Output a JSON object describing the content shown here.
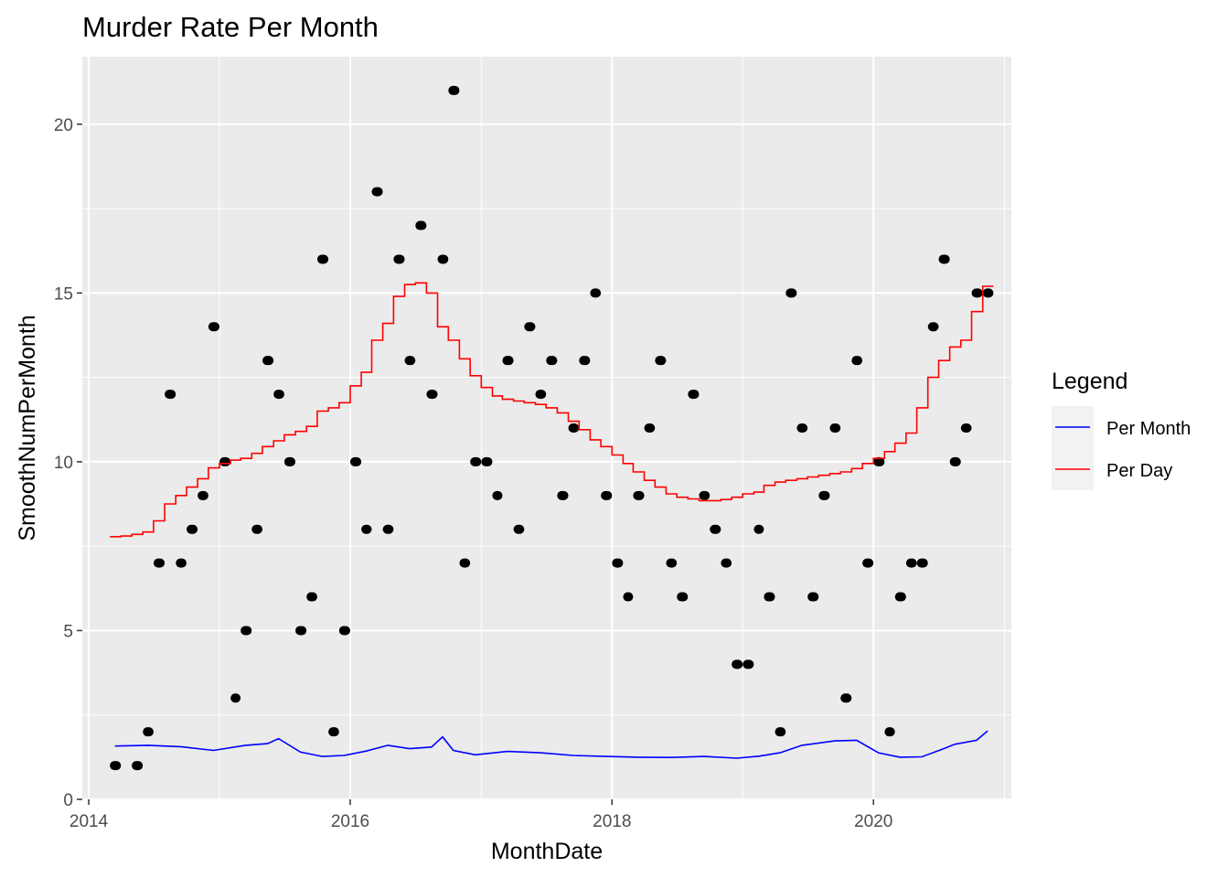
{
  "chart_data": {
    "type": "line",
    "title": "Murder Rate Per Month",
    "xlabel": "MonthDate",
    "ylabel": "SmoothNumPerMonth",
    "xlim": [
      "2013-12-14",
      "2021-01-20"
    ],
    "ylim": [
      0,
      22
    ],
    "x_ticks": [
      "2014",
      "2016",
      "2018",
      "2020"
    ],
    "y_ticks": [
      "0",
      "5",
      "10",
      "15",
      "20"
    ],
    "grid": true,
    "legend": {
      "title": "Legend",
      "position": "right",
      "entries": [
        {
          "label": "Per Month",
          "color": "#0000ff"
        },
        {
          "label": "Per Day",
          "color": "#ff0000"
        }
      ]
    },
    "points": {
      "name": "Monthly count",
      "color": "#000000",
      "x": [
        "2014-03",
        "2014-05",
        "2014-06",
        "2014-07",
        "2014-08",
        "2014-09",
        "2014-10",
        "2014-11",
        "2014-12",
        "2015-01",
        "2015-02",
        "2015-03",
        "2015-04",
        "2015-05",
        "2015-06",
        "2015-07",
        "2015-08",
        "2015-09",
        "2015-10",
        "2015-11",
        "2015-12",
        "2016-01",
        "2016-02",
        "2016-03",
        "2016-04",
        "2016-05",
        "2016-06",
        "2016-07",
        "2016-08",
        "2016-09",
        "2016-10",
        "2016-11",
        "2016-12",
        "2017-01",
        "2017-02",
        "2017-03",
        "2017-04",
        "2017-05",
        "2017-06",
        "2017-07",
        "2017-08",
        "2017-09",
        "2017-10",
        "2017-11",
        "2017-12",
        "2018-01",
        "2018-02",
        "2018-03",
        "2018-04",
        "2018-05",
        "2018-06",
        "2018-07",
        "2018-08",
        "2018-09",
        "2018-10",
        "2018-11",
        "2018-12",
        "2019-01",
        "2019-02",
        "2019-03",
        "2019-04",
        "2019-05",
        "2019-06",
        "2019-07",
        "2019-08",
        "2019-09",
        "2019-10",
        "2019-11",
        "2019-12",
        "2020-01",
        "2020-02",
        "2020-03",
        "2020-04",
        "2020-05",
        "2020-06",
        "2020-07",
        "2020-08",
        "2020-09",
        "2020-10",
        "2020-11"
      ],
      "y": [
        1,
        1,
        2,
        7,
        12,
        7,
        8,
        9,
        14,
        10,
        3,
        5,
        8,
        13,
        12,
        10,
        5,
        6,
        16,
        2,
        5,
        10,
        8,
        18,
        8,
        16,
        13,
        17,
        12,
        16,
        21,
        7,
        10,
        10,
        9,
        13,
        8,
        14,
        12,
        13,
        9,
        11,
        13,
        15,
        9,
        7,
        6,
        9,
        11,
        13,
        7,
        6,
        12,
        9,
        8,
        7,
        4,
        4,
        8,
        6,
        2,
        15,
        11,
        6,
        9,
        11,
        3,
        13,
        7,
        10,
        2,
        6,
        7,
        7,
        14,
        16,
        10,
        11,
        15,
        15
      ]
    },
    "series": [
      {
        "name": "Per Month",
        "color": "#0000ff",
        "x": [
          "2014-03",
          "2014-06",
          "2014-09",
          "2014-12",
          "2015-03",
          "2015-05",
          "2015-06",
          "2015-08",
          "2015-10",
          "2015-12",
          "2016-02",
          "2016-04",
          "2016-06",
          "2016-08",
          "2016-09",
          "2016-10",
          "2016-12",
          "2017-03",
          "2017-06",
          "2017-09",
          "2017-12",
          "2018-03",
          "2018-06",
          "2018-09",
          "2018-12",
          "2019-02",
          "2019-04",
          "2019-06",
          "2019-09",
          "2019-11",
          "2020-01",
          "2020-03",
          "2020-05",
          "2020-07",
          "2020-08",
          "2020-10",
          "2020-11"
        ],
        "y": [
          1.58,
          1.6,
          1.56,
          1.45,
          1.6,
          1.65,
          1.8,
          1.4,
          1.27,
          1.3,
          1.43,
          1.6,
          1.5,
          1.55,
          1.85,
          1.45,
          1.32,
          1.42,
          1.38,
          1.3,
          1.27,
          1.25,
          1.24,
          1.27,
          1.22,
          1.28,
          1.38,
          1.6,
          1.73,
          1.75,
          1.38,
          1.25,
          1.26,
          1.5,
          1.63,
          1.75,
          2.03
        ]
      },
      {
        "name": "Per Day",
        "color": "#ff0000",
        "x": [
          "2014-03",
          "2014-04",
          "2014-05",
          "2014-06",
          "2014-07",
          "2014-08",
          "2014-09",
          "2014-10",
          "2014-11",
          "2014-12",
          "2015-01",
          "2015-02",
          "2015-03",
          "2015-04",
          "2015-05",
          "2015-06",
          "2015-07",
          "2015-08",
          "2015-09",
          "2015-10",
          "2015-11",
          "2015-12",
          "2016-01",
          "2016-02",
          "2016-03",
          "2016-04",
          "2016-05",
          "2016-06",
          "2016-07",
          "2016-08",
          "2016-09",
          "2016-10",
          "2016-11",
          "2016-12",
          "2017-01",
          "2017-02",
          "2017-03",
          "2017-04",
          "2017-05",
          "2017-06",
          "2017-07",
          "2017-08",
          "2017-09",
          "2017-10",
          "2017-11",
          "2017-12",
          "2018-01",
          "2018-02",
          "2018-03",
          "2018-04",
          "2018-05",
          "2018-06",
          "2018-07",
          "2018-08",
          "2018-09",
          "2018-10",
          "2018-11",
          "2018-12",
          "2019-01",
          "2019-02",
          "2019-03",
          "2019-04",
          "2019-05",
          "2019-06",
          "2019-07",
          "2019-08",
          "2019-09",
          "2019-10",
          "2019-11",
          "2019-12",
          "2020-01",
          "2020-02",
          "2020-03",
          "2020-04",
          "2020-05",
          "2020-06",
          "2020-07",
          "2020-08",
          "2020-09",
          "2020-10",
          "2020-11"
        ],
        "y": [
          7.78,
          7.8,
          7.85,
          7.92,
          8.25,
          8.75,
          9.0,
          9.25,
          9.5,
          9.82,
          9.95,
          10.05,
          10.1,
          10.25,
          10.45,
          10.62,
          10.8,
          10.9,
          11.05,
          11.5,
          11.6,
          11.75,
          12.25,
          12.65,
          13.6,
          14.1,
          14.9,
          15.25,
          15.3,
          15.0,
          14.0,
          13.6,
          13.05,
          12.55,
          12.2,
          11.95,
          11.85,
          11.8,
          11.75,
          11.7,
          11.6,
          11.45,
          11.2,
          10.95,
          10.65,
          10.45,
          10.2,
          9.95,
          9.7,
          9.45,
          9.25,
          9.05,
          8.95,
          8.9,
          8.85,
          8.85,
          8.88,
          8.95,
          9.05,
          9.1,
          9.3,
          9.4,
          9.45,
          9.5,
          9.55,
          9.6,
          9.65,
          9.7,
          9.8,
          9.95,
          10.1,
          10.3,
          10.55,
          10.85,
          11.6,
          12.5,
          13.0,
          13.4,
          13.6,
          14.45,
          15.2
        ]
      }
    ]
  }
}
